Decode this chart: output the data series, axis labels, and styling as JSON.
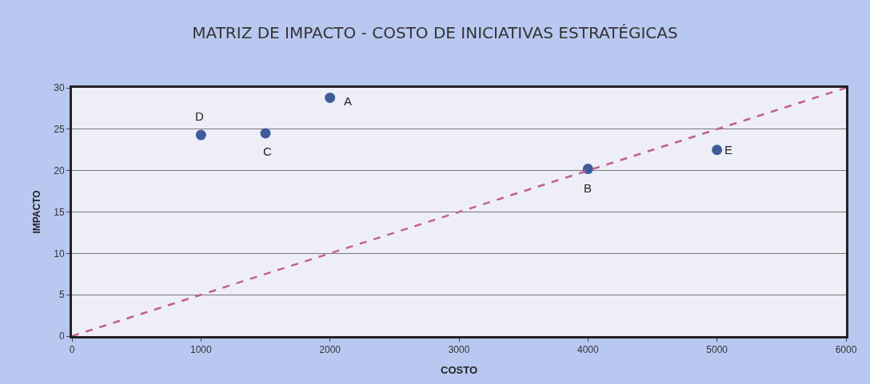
{
  "chart_data": {
    "type": "scatter",
    "title": "MATRIZ DE IMPACTO - COSTO DE INICIATIVAS ESTRATÉGICAS",
    "xlabel": "COSTO",
    "ylabel": "IMPACTO",
    "series": [
      {
        "color": "#3f5b9a",
        "marker": "circle",
        "x": [
          2000,
          4000,
          1500,
          1000,
          5000
        ],
        "values": [
          28.8,
          20.2,
          24.5,
          24.3,
          22.5
        ]
      },
      {
        "type": "line",
        "color": "#c0608f",
        "line_style": "dashed",
        "marker": "none",
        "x": [
          0,
          6000
        ],
        "values": [
          0,
          30
        ]
      }
    ],
    "annotations": [
      {
        "text": "A",
        "x": 2000,
        "y": 28.8
      },
      {
        "text": "B",
        "x": 4000,
        "y": 20.2
      },
      {
        "text": "C",
        "x": 1500,
        "y": 24.5
      },
      {
        "text": "D",
        "x": 1000,
        "y": 24.3
      },
      {
        "text": "E",
        "x": 5000,
        "y": 22.5
      }
    ],
    "xlim": [
      0,
      6000
    ],
    "xticks": [
      0,
      1000,
      2000,
      3000,
      4000,
      5000,
      6000
    ],
    "ylim": [
      0,
      30
    ],
    "yticks": [
      0,
      5,
      10,
      15,
      20,
      25,
      30
    ],
    "grid": "y",
    "legend": false
  }
}
